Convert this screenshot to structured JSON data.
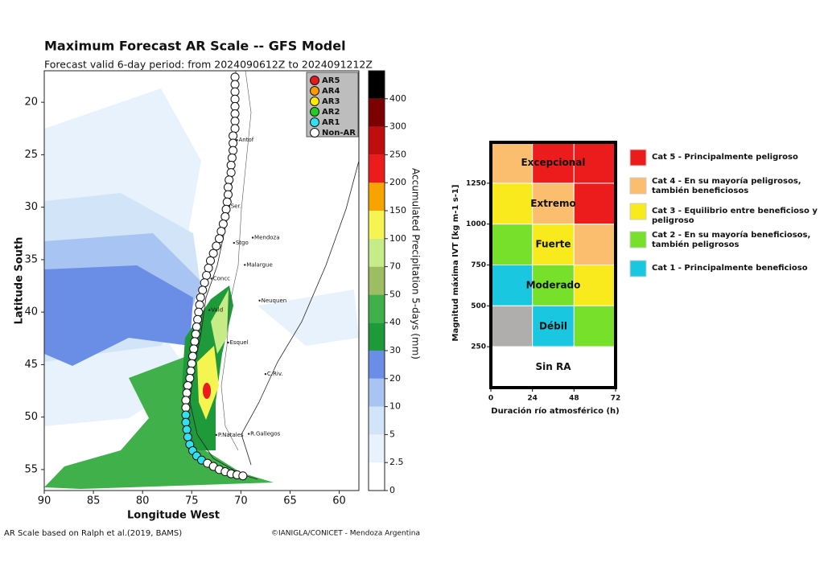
{
  "map": {
    "title": "Maximum Forecast AR Scale -- GFS Model",
    "subtitle": "Forecast valid 6-day period: from 2024090612Z to 2024091212Z",
    "xlabel": "Longitude West",
    "ylabel": "Latitude South",
    "xlim": [
      90,
      58
    ],
    "ylim": [
      17,
      57
    ],
    "xticks": [
      90,
      85,
      80,
      75,
      70,
      65,
      60
    ],
    "yticks": [
      20,
      25,
      30,
      35,
      40,
      45,
      50,
      55
    ],
    "legend": [
      {
        "name": "AR5",
        "color": "#e41a1c"
      },
      {
        "name": "AR4",
        "color": "#ff9900"
      },
      {
        "name": "AR3",
        "color": "#ffee00"
      },
      {
        "name": "AR2",
        "color": "#22cc22"
      },
      {
        "name": "AR1",
        "color": "#33e0f0"
      },
      {
        "name": "Non-AR",
        "color": "#ffffff"
      }
    ],
    "track": {
      "lon": [
        70.6,
        70.6,
        70.6,
        70.6,
        70.6,
        70.6,
        70.6,
        70.6,
        70.8,
        70.8,
        70.8,
        70.9,
        71.0,
        71.0,
        71.2,
        71.3,
        71.3,
        71.4,
        71.5,
        71.6,
        71.8,
        72.0,
        72.2,
        72.5,
        72.8,
        73.1,
        73.3,
        73.5,
        73.7,
        73.9,
        74.1,
        74.2,
        74.3,
        74.4,
        74.5,
        74.6,
        74.7,
        74.8,
        74.9,
        75.0,
        75.1,
        75.2,
        75.4,
        75.5,
        75.6,
        75.6,
        75.6,
        75.6,
        75.5,
        75.4,
        75.2,
        74.9,
        74.5,
        74.0,
        73.4,
        72.8,
        72.2,
        71.6,
        71.0,
        70.4,
        69.8
      ],
      "lat": [
        17.6,
        18.3,
        19.0,
        19.7,
        20.4,
        21.1,
        21.8,
        22.5,
        23.2,
        23.9,
        24.6,
        25.3,
        26.0,
        26.7,
        27.4,
        28.1,
        28.8,
        29.5,
        30.2,
        30.9,
        31.6,
        32.3,
        33.0,
        33.7,
        34.4,
        35.1,
        35.8,
        36.5,
        37.2,
        37.9,
        38.6,
        39.3,
        40.0,
        40.7,
        41.4,
        42.1,
        42.8,
        43.5,
        44.2,
        44.9,
        45.6,
        46.3,
        47.0,
        47.7,
        48.4,
        49.1,
        49.8,
        50.5,
        51.2,
        51.9,
        52.6,
        53.2,
        53.7,
        54.1,
        54.4,
        54.7,
        55.0,
        55.2,
        55.4,
        55.5,
        55.6
      ],
      "class": [
        "Non-AR",
        "Non-AR",
        "Non-AR",
        "Non-AR",
        "Non-AR",
        "Non-AR",
        "Non-AR",
        "Non-AR",
        "Non-AR",
        "Non-AR",
        "Non-AR",
        "Non-AR",
        "Non-AR",
        "Non-AR",
        "Non-AR",
        "Non-AR",
        "Non-AR",
        "Non-AR",
        "Non-AR",
        "Non-AR",
        "Non-AR",
        "Non-AR",
        "Non-AR",
        "Non-AR",
        "Non-AR",
        "Non-AR",
        "Non-AR",
        "Non-AR",
        "Non-AR",
        "Non-AR",
        "Non-AR",
        "Non-AR",
        "Non-AR",
        "Non-AR",
        "Non-AR",
        "Non-AR",
        "Non-AR",
        "Non-AR",
        "Non-AR",
        "Non-AR",
        "Non-AR",
        "Non-AR",
        "Non-AR",
        "Non-AR",
        "Non-AR",
        "Non-AR",
        "AR1",
        "AR1",
        "AR1",
        "AR1",
        "AR1",
        "AR1",
        "AR1",
        "AR1",
        "Non-AR",
        "Non-AR",
        "Non-AR",
        "Non-AR",
        "Non-AR",
        "Non-AR",
        "Non-AR"
      ]
    },
    "cities": [
      {
        "name": "Antof",
        "lon": 70.4,
        "lat": 23.6
      },
      {
        "name": "Ser.",
        "lon": 71.2,
        "lat": 29.9
      },
      {
        "name": "Stgo",
        "lon": 70.7,
        "lat": 33.4
      },
      {
        "name": "Mendoza",
        "lon": 68.8,
        "lat": 32.9
      },
      {
        "name": "Malargue",
        "lon": 69.6,
        "lat": 35.5
      },
      {
        "name": "Concc",
        "lon": 73.0,
        "lat": 36.8
      },
      {
        "name": "Vald",
        "lon": 73.2,
        "lat": 39.8
      },
      {
        "name": "Neuquen",
        "lon": 68.1,
        "lat": 38.9
      },
      {
        "name": "Esquel",
        "lon": 71.3,
        "lat": 42.9
      },
      {
        "name": "C.Riv.",
        "lon": 67.5,
        "lat": 45.9
      },
      {
        "name": "P.Natales",
        "lon": 72.5,
        "lat": 51.7
      },
      {
        "name": "R.Gallegos",
        "lon": 69.2,
        "lat": 51.6
      }
    ]
  },
  "colorbar": {
    "label": "Accumulated Precipitation 5-days (mm)",
    "ticks": [
      0,
      2.5,
      5,
      10,
      20,
      30,
      40,
      50,
      70,
      100,
      150,
      200,
      250,
      300,
      400
    ],
    "colors": [
      "#ffffff",
      "#e8f2fc",
      "#d2e4f8",
      "#a7c4f2",
      "#6a8de6",
      "#1e9a3a",
      "#3fb04a",
      "#9dbd62",
      "#c5ec86",
      "#f5f552",
      "#f7a400",
      "#ec1c1c",
      "#c00d0d",
      "#7c0000",
      "#000000"
    ]
  },
  "credits": {
    "left": "AR Scale based on Ralph et al.(2019, BAMS)",
    "right": "©IANIGLA/CONICET - Mendoza Argentina"
  },
  "scale": {
    "ylabel": "Magnitud máxima IVT  [kg m-1 s-1]",
    "xlabel": "Duración río atmosférico (h)",
    "xlim": [
      0,
      72
    ],
    "ylim": [
      0,
      1500
    ],
    "xticks": [
      0,
      24,
      48,
      72
    ],
    "yticks": [
      250,
      500,
      750,
      1000,
      1250
    ],
    "rows": [
      "Excepcional",
      "Extremo",
      "Fuerte",
      "Moderado",
      "Débil",
      "Sin RA"
    ],
    "cells": [
      [
        "#fbbd6e",
        "#ec1c1c",
        "#ec1c1c"
      ],
      [
        "#f8ea1c",
        "#fbbd6e",
        "#ec1c1c"
      ],
      [
        "#76e02a",
        "#f8ea1c",
        "#fbbd6e"
      ],
      [
        "#19c8e0",
        "#76e02a",
        "#f8ea1c"
      ],
      [
        "#b0adad",
        "#19c8e0",
        "#76e02a"
      ],
      [
        "#ffffff",
        "#ffffff",
        "#ffffff"
      ]
    ],
    "legend": [
      {
        "label": "Cat 5 - Principalmente peligroso",
        "color": "#ec1c1c"
      },
      {
        "label": "Cat 4 - En su mayoría peligrosos, también beneficiosos",
        "color": "#fbbd6e"
      },
      {
        "label": "Cat 3 - Equilibrio entre beneficioso y peligroso",
        "color": "#f8ea1c"
      },
      {
        "label": "Cat 2 - En su mayoría beneficiosos, también peligrosos",
        "color": "#76e02a"
      },
      {
        "label": "Cat 1 - Principalmente beneficioso",
        "color": "#19c8e0"
      }
    ]
  }
}
